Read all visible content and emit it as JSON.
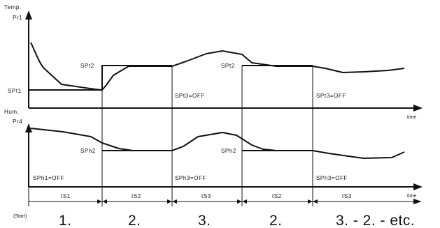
{
  "top_chart": {
    "ylabel_line1": "Temp.",
    "ylabel_line2": "Pr1",
    "xlabel": "time",
    "setpoints": [
      "SPt1",
      "SPt2",
      "SPt2"
    ],
    "off_labels": [
      "SPt3=OFF",
      "SPt3=OFF"
    ]
  },
  "bottom_chart": {
    "ylabel_line1": "Hum.",
    "ylabel_line2": "Pr4",
    "xlabel": "time",
    "setpoints": [
      "SPh2",
      "SPh2"
    ],
    "off_labels": [
      "SPh1=OFF",
      "SPh3=OFF",
      "SPh3=OFF"
    ]
  },
  "timeline": {
    "segments": [
      "tS1",
      "tS2",
      "tS3",
      "tS2",
      "tS3"
    ],
    "start_label": "(Start)",
    "phases": [
      "1.",
      "2.",
      "3.",
      "2.",
      "3. - 2. - etc."
    ]
  }
}
